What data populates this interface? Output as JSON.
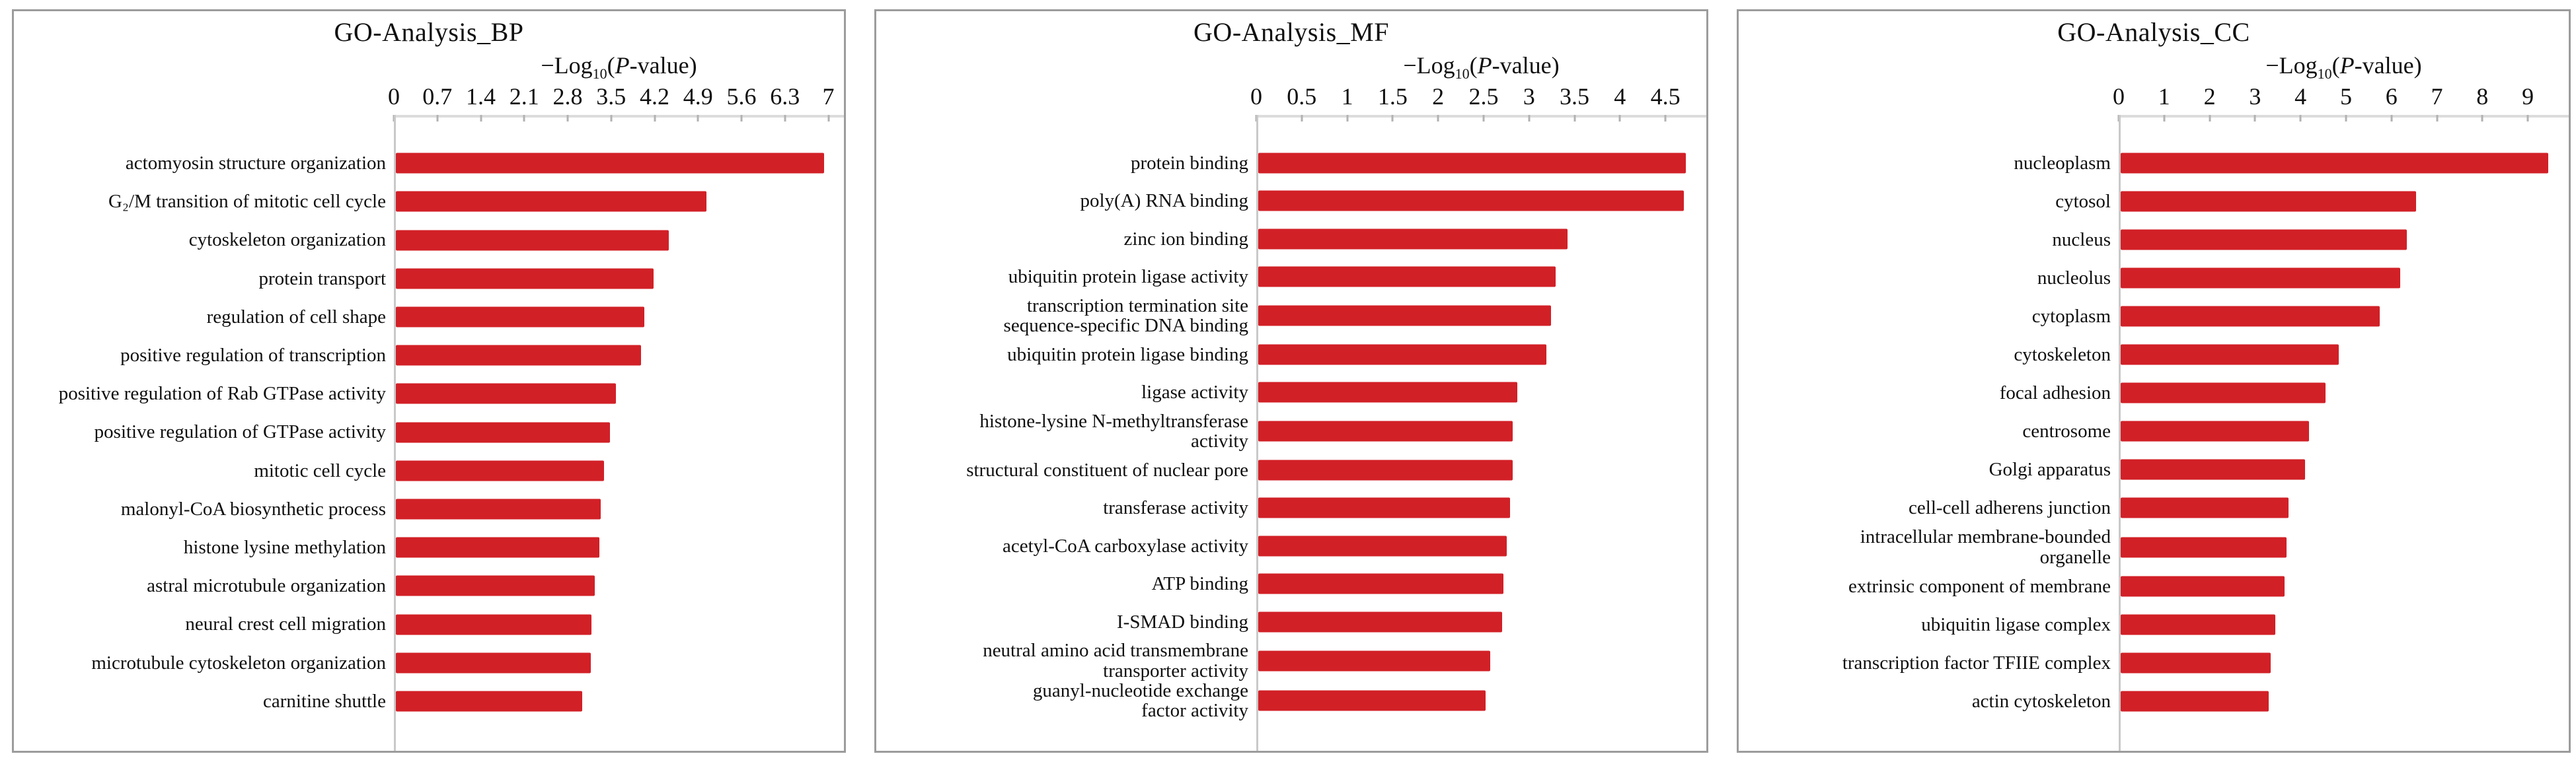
{
  "colors": {
    "bar": "#d22027",
    "panel_border": "#9c9c9c",
    "axis_line": "#dcdcdc",
    "axis_tick": "#b2b2b2",
    "y_axis_line": "#c9c9c9",
    "text": "#101010",
    "background": "#ffffff"
  },
  "axis_label_parts": {
    "base": "−Log",
    "sub": "10",
    "open": "(",
    "pvar": "P",
    "tail": "-value)"
  },
  "chart_data": [
    {
      "type": "bar",
      "orientation": "horizontal",
      "title": "GO-Analysis_BP",
      "xlabel": "−Log10(P-value)",
      "xlim": [
        0,
        7.25
      ],
      "xticks": [
        "0",
        "0.7",
        "1.4",
        "2.1",
        "2.8",
        "3.5",
        "4.2",
        "4.9",
        "5.6",
        "6.3",
        "7"
      ],
      "grid": false,
      "tick_side": "top",
      "bar_color": "#d22027",
      "categories": [
        "actomyosin structure organization",
        "G₂/M transition of mitotic cell cycle",
        "cytoskeleton organization",
        "protein transport",
        "regulation of cell shape",
        "positive regulation of transcription",
        "positive regulation of Rab GTPase activity",
        "positive regulation of GTPase activity",
        "mitotic cell cycle",
        "malonyl-CoA biosynthetic process",
        "histone lysine methylation",
        "astral microtubule organization",
        "neural crest cell migration",
        "microtubule cytoskeleton organization",
        "carnitine shuttle"
      ],
      "values": [
        6.9,
        5.0,
        4.4,
        4.15,
        4.0,
        3.95,
        3.55,
        3.45,
        3.35,
        3.3,
        3.28,
        3.2,
        3.15,
        3.14,
        3.0
      ]
    },
    {
      "type": "bar",
      "orientation": "horizontal",
      "title": "GO-Analysis_MF",
      "xlabel": "−Log10(P-value)",
      "xlim": [
        0,
        4.95
      ],
      "xticks": [
        "0",
        "0.5",
        "1",
        "1.5",
        "2",
        "2.5",
        "3",
        "3.5",
        "4",
        "4.5"
      ],
      "grid": false,
      "tick_side": "top",
      "bar_color": "#d22027",
      "categories": [
        "protein binding",
        "poly(A) RNA binding",
        "zinc ion binding",
        "ubiquitin protein ligase activity",
        "transcription termination site\nsequence-specific DNA binding",
        "ubiquitin protein ligase binding",
        "ligase activity",
        "histone-lysine N-methyltransferase\nactivity",
        "structural constituent of nuclear pore",
        "transferase activity",
        "acetyl-CoA carboxylase activity",
        "ATP binding",
        "I-SMAD binding",
        "neutral amino acid transmembrane\ntransporter activity",
        "guanyl-nucleotide exchange\nfactor activity"
      ],
      "values": [
        4.7,
        4.68,
        3.4,
        3.27,
        3.22,
        3.17,
        2.85,
        2.8,
        2.8,
        2.77,
        2.73,
        2.7,
        2.68,
        2.55,
        2.5
      ]
    },
    {
      "type": "bar",
      "orientation": "horizontal",
      "title": "GO-Analysis_CC",
      "xlabel": "−Log10(P-value)",
      "xlim": [
        0,
        9.9
      ],
      "xticks": [
        "0",
        "1",
        "2",
        "3",
        "4",
        "5",
        "6",
        "7",
        "8",
        "9"
      ],
      "grid": false,
      "tick_side": "top",
      "bar_color": "#d22027",
      "categories": [
        "nucleoplasm",
        "cytosol",
        "nucleus",
        "nucleolus",
        "cytoplasm",
        "cytoskeleton",
        "focal adhesion",
        "centrosome",
        "Golgi apparatus",
        "cell-cell adherens junction",
        "intracellular membrane-bounded\norganelle",
        "extrinsic component of membrane",
        "ubiquitin ligase complex",
        "transcription factor TFIIE complex",
        "actin cytoskeleton"
      ],
      "values": [
        9.4,
        6.5,
        6.3,
        6.15,
        5.7,
        4.8,
        4.5,
        4.15,
        4.05,
        3.7,
        3.65,
        3.6,
        3.4,
        3.3,
        3.25
      ]
    }
  ]
}
